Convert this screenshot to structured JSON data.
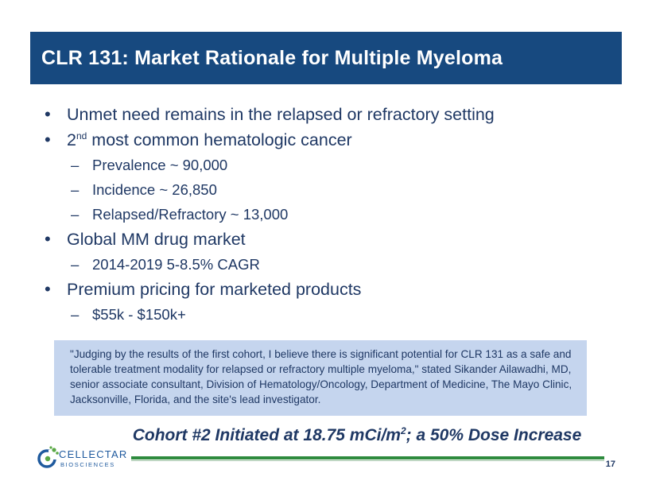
{
  "slide": {
    "title": "CLR 131: Market Rationale for Multiple Myeloma",
    "bullets": [
      {
        "text": "Unmet need remains in the relapsed or refractory setting"
      },
      {
        "pre": "2",
        "sup": "nd",
        "post": " most common hematologic cancer",
        "sub": [
          "Prevalence ~ 90,000",
          "Incidence ~ 26,850",
          "Relapsed/Refractory ~ 13,000"
        ]
      },
      {
        "text": "Global MM drug market",
        "sub": [
          "2014-2019 5-8.5% CAGR"
        ]
      },
      {
        "text": "Premium pricing for marketed products",
        "sub": [
          "$55k - $150k+"
        ]
      }
    ],
    "quote": "\"Judging by the results of the first cohort, I believe there is significant potential for CLR 131 as a safe and tolerable treatment modality for relapsed or refractory multiple myeloma,\" stated Sikander Ailawadhi, MD, senior associate consultant, Division of Hematology/Oncology, Department of Medicine, The Mayo Clinic, Jacksonville, Florida, and the site's lead investigator.",
    "cohort": {
      "pre": "Cohort #2 Initiated at 18.75 mCi/m",
      "sup": "2",
      "post": "; a 50% Dose Increase"
    },
    "page_number": "17"
  },
  "logo": {
    "name": "CELLECTAR",
    "sub": "BIOSCIENCES"
  },
  "colors": {
    "title_bar": "#17497f",
    "text": "#1f3864",
    "quote_bg": "#c5d5ee",
    "footer_line": "#2e8b3e"
  }
}
